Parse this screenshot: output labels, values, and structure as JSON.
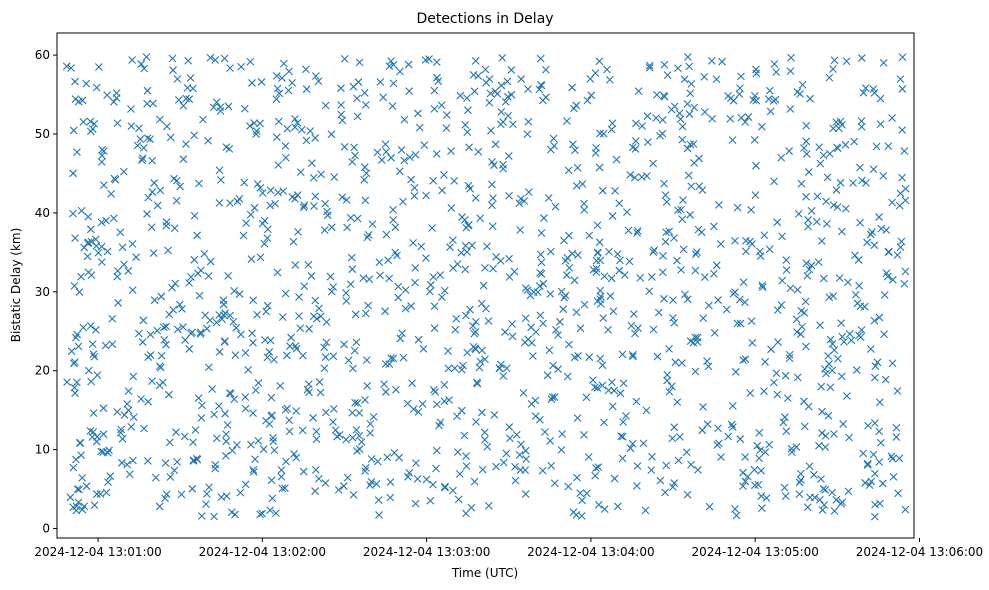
{
  "chart_data": {
    "type": "scatter",
    "title": "Detections in Delay",
    "xlabel": "Time (UTC)",
    "ylabel": "Bistatic Delay (km)",
    "x_unit": "time",
    "xlim": [
      "2024-12-04 13:00:45",
      "2024-12-04 13:05:58"
    ],
    "ylim": [
      -1.2,
      62.8
    ],
    "x_ticks": [
      "2024-12-04 13:01:00",
      "2024-12-04 13:02:00",
      "2024-12-04 13:03:00",
      "2024-12-04 13:04:00",
      "2024-12-04 13:05:00",
      "2024-12-04 13:06:00"
    ],
    "y_ticks": [
      0,
      10,
      20,
      30,
      40,
      50,
      60
    ],
    "marker": "x",
    "color": "#1f77b4",
    "grid": false,
    "series": [
      {
        "start_time": "2024-12-04 13:00:48",
        "end_time": "2024-12-04 13:05:55",
        "count": 1500,
        "y_min": 1.5,
        "y_max": 59.8
      }
    ]
  }
}
